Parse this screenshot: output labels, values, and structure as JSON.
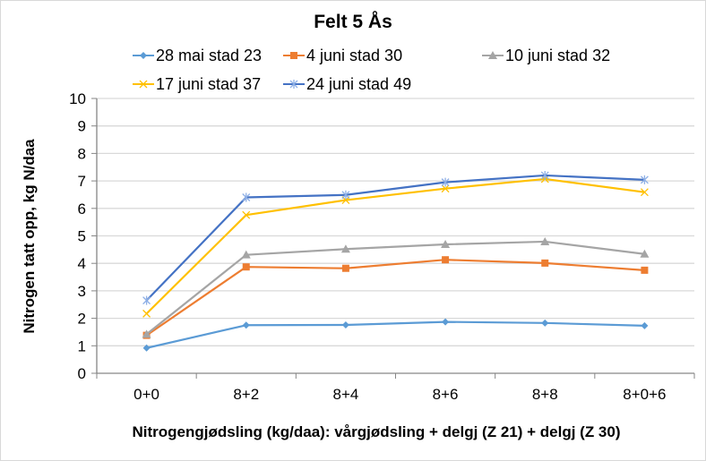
{
  "chart_data": {
    "type": "line",
    "title": "Felt 5 Ås",
    "xlabel": "Nitrogengjødsling (kg/daa): vårgjødsling + delgj (Z 21) + delgj (Z 30)",
    "ylabel": "Nitrogen tatt opp, kg N/daa",
    "ylim": [
      0,
      10
    ],
    "yticks": [
      "0",
      "1",
      "2",
      "3",
      "4",
      "5",
      "6",
      "7",
      "8",
      "9",
      "10"
    ],
    "grid": true,
    "legend_position": "top",
    "categories": [
      "0+0",
      "8+2",
      "8+4",
      "8+6",
      "8+8",
      "8+0+6"
    ],
    "series": [
      {
        "name": "28 mai stad 23",
        "color": "#5b9bd5",
        "marker": "diamond",
        "values": [
          0.92,
          1.75,
          1.76,
          1.87,
          1.83,
          1.73
        ]
      },
      {
        "name": "4 juni stad 30",
        "color": "#ed7d31",
        "marker": "square",
        "values": [
          1.38,
          3.87,
          3.82,
          4.13,
          4.01,
          3.75
        ]
      },
      {
        "name": "10 juni stad 32",
        "color": "#a5a5a5",
        "marker": "triangle",
        "values": [
          1.42,
          4.31,
          4.52,
          4.69,
          4.79,
          4.34
        ]
      },
      {
        "name": "17 juni stad 37",
        "color": "#ffc000",
        "marker": "x",
        "values": [
          2.17,
          5.76,
          6.3,
          6.72,
          7.07,
          6.59
        ]
      },
      {
        "name": "24 juni stad 49",
        "color": "#4472c4",
        "marker": "star",
        "values": [
          2.65,
          6.4,
          6.49,
          6.95,
          7.2,
          7.04
        ]
      }
    ]
  }
}
